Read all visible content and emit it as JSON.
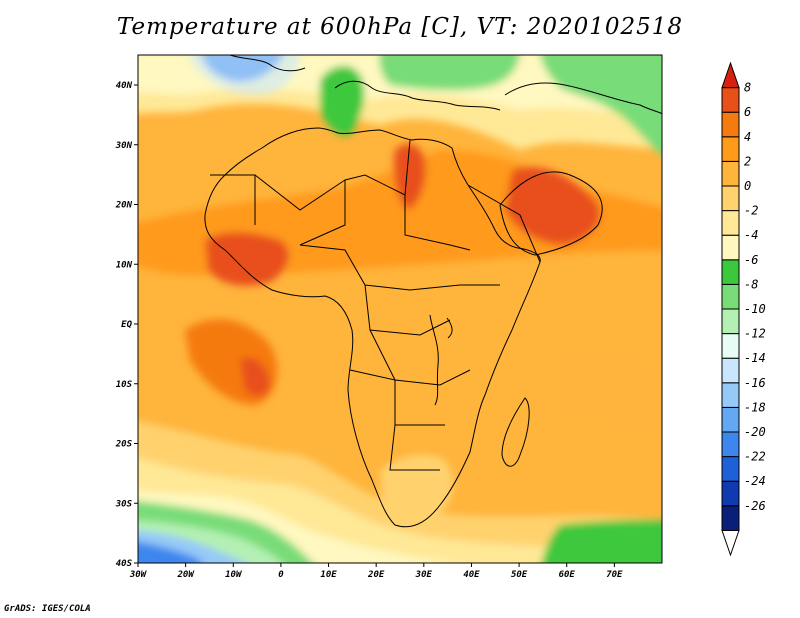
{
  "title": "Temperature at 600hPa [C], VT: 2020102518",
  "credit": "GrADS: IGES/COLA",
  "map": {
    "x_ticks": [
      "30W",
      "20W",
      "10W",
      "0",
      "10E",
      "20E",
      "30E",
      "40E",
      "50E",
      "60E",
      "70E"
    ],
    "y_ticks": [
      "40N",
      "30N",
      "20N",
      "10N",
      "EQ",
      "10S",
      "20S",
      "30S",
      "40S"
    ]
  },
  "colorbar": {
    "labels": [
      "8",
      "6",
      "4",
      "2",
      "0",
      "-2",
      "-4",
      "-6",
      "-8",
      "-10",
      "-12",
      "-14",
      "-16",
      "-18",
      "-20",
      "-22",
      "-24",
      "-26"
    ],
    "colors": [
      "#ffffff",
      "#0a1f7a",
      "#103ab0",
      "#1e60d8",
      "#3c86ee",
      "#64a8f4",
      "#96c9f8",
      "#c8e7fc",
      "#e8fbf4",
      "#b4f0b4",
      "#78dc78",
      "#3cc83c",
      "#fff8c0",
      "#ffe896",
      "#ffd26e",
      "#ffb43c",
      "#ff9a1a",
      "#f57a10",
      "#e8501a",
      "#d82010"
    ]
  }
}
